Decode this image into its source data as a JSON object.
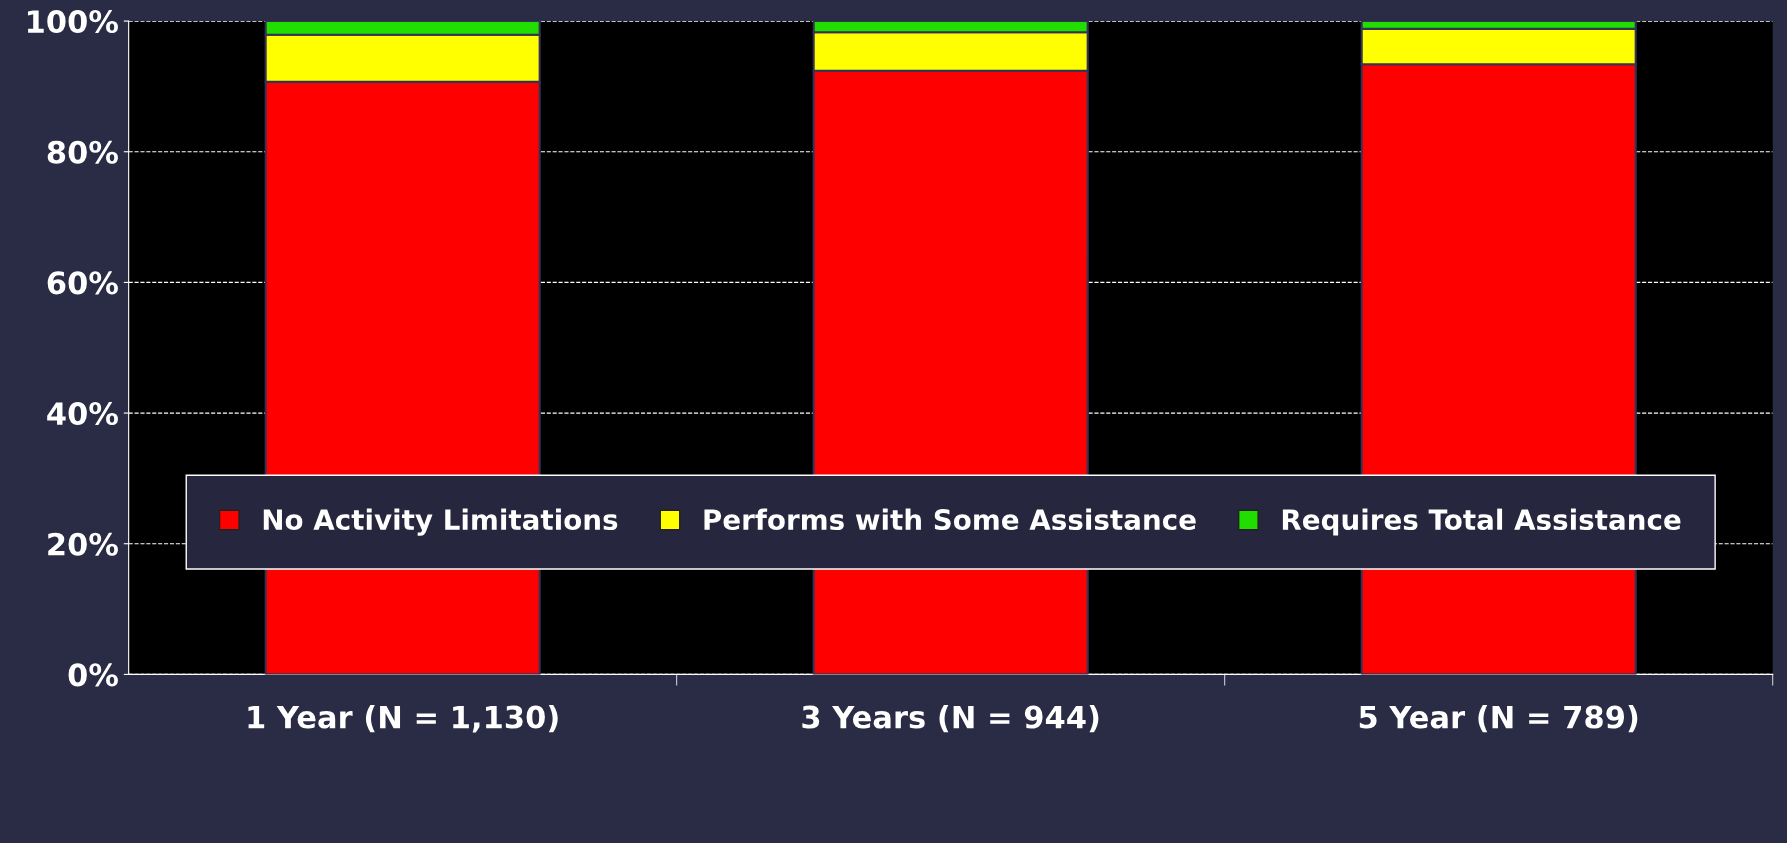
{
  "chart_data": {
    "type": "bar",
    "stacked": true,
    "categories": [
      "1 Year (N = 1,130)",
      "3 Years (N = 944)",
      "5 Year (N = 789)"
    ],
    "series": [
      {
        "name": "No Activity Limitations",
        "color": "#ff0000",
        "values": [
          90.7,
          92.4,
          93.4
        ]
      },
      {
        "name": "Performs with Some Assistance",
        "color": "#ffff00",
        "values": [
          7.2,
          5.9,
          5.4
        ]
      },
      {
        "name": "Requires Total Assistance",
        "color": "#22dd00",
        "values": [
          2.1,
          1.7,
          1.2
        ]
      }
    ],
    "ylim": [
      0,
      100
    ],
    "yticks": [
      {
        "value": 0,
        "label": "0%"
      },
      {
        "value": 20,
        "label": "20%"
      },
      {
        "value": 40,
        "label": "40%"
      },
      {
        "value": 60,
        "label": "60%"
      },
      {
        "value": 80,
        "label": "80%"
      },
      {
        "value": 100,
        "label": "100%"
      }
    ],
    "grid": "y",
    "legend": "bottom"
  }
}
